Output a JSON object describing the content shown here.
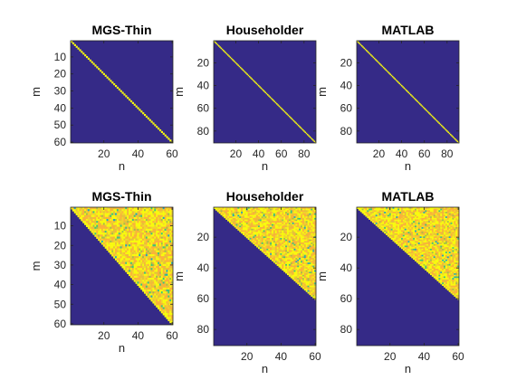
{
  "chart_data": [
    {
      "type": "heatmap",
      "title": "MGS-Thin",
      "xlabel": "n",
      "ylabel": "m",
      "x_range": [
        1,
        60
      ],
      "y_range": [
        1,
        60
      ],
      "xticks": [
        20,
        40,
        60
      ],
      "yticks": [
        10,
        20,
        30,
        40,
        50,
        60
      ],
      "y_reversed": true,
      "pattern": "diagonal",
      "description_values": "identity-like matrix: diagonal value 1, off-diagonal 0"
    },
    {
      "type": "heatmap",
      "title": "Householder",
      "xlabel": "n",
      "ylabel": "m",
      "x_range": [
        1,
        90
      ],
      "y_range": [
        1,
        90
      ],
      "xticks": [
        20,
        40,
        60,
        80
      ],
      "yticks": [
        20,
        40,
        60,
        80
      ],
      "y_reversed": true,
      "pattern": "diagonal",
      "description_values": "identity-like matrix: diagonal value 1, off-diagonal 0"
    },
    {
      "type": "heatmap",
      "title": "MATLAB",
      "xlabel": "n",
      "ylabel": "m",
      "x_range": [
        1,
        90
      ],
      "y_range": [
        1,
        90
      ],
      "xticks": [
        20,
        40,
        60,
        80
      ],
      "yticks": [
        20,
        40,
        60,
        80
      ],
      "y_reversed": true,
      "pattern": "diagonal",
      "description_values": "identity-like matrix: diagonal value 1, off-diagonal 0"
    },
    {
      "type": "heatmap",
      "title": "MGS-Thin",
      "xlabel": "n",
      "ylabel": "m",
      "x_range": [
        1,
        60
      ],
      "y_range": [
        1,
        60
      ],
      "xticks": [
        20,
        40,
        60
      ],
      "yticks": [
        10,
        20,
        30,
        40,
        50,
        60
      ],
      "y_reversed": true,
      "pattern": "upper-triangular",
      "triangle_rows": 60,
      "description_values": "upper triangular: nonzero (high) above diagonal, zero below"
    },
    {
      "type": "heatmap",
      "title": "Householder",
      "xlabel": "n",
      "ylabel": "m",
      "x_range": [
        1,
        60
      ],
      "y_range": [
        1,
        90
      ],
      "xticks": [
        20,
        40,
        60
      ],
      "yticks": [
        20,
        40,
        60,
        80
      ],
      "y_reversed": true,
      "pattern": "upper-triangular",
      "triangle_rows": 60,
      "description_values": "upper triangular in first 60 rows, zero below"
    },
    {
      "type": "heatmap",
      "title": "MATLAB",
      "xlabel": "n",
      "ylabel": "m",
      "x_range": [
        1,
        60
      ],
      "y_range": [
        1,
        90
      ],
      "xticks": [
        20,
        40,
        60
      ],
      "yticks": [
        20,
        40,
        60,
        80
      ],
      "y_reversed": true,
      "pattern": "upper-triangular",
      "triangle_rows": 60,
      "description_values": "upper triangular in first 60 rows, zero below"
    }
  ],
  "colors": {
    "low": "#352a87",
    "high": "#f9fb0e",
    "mid_warm": "#fbb23a",
    "mid_green": "#3ec27e",
    "mid_teal": "#1ba5c4",
    "axis": "#262626"
  }
}
